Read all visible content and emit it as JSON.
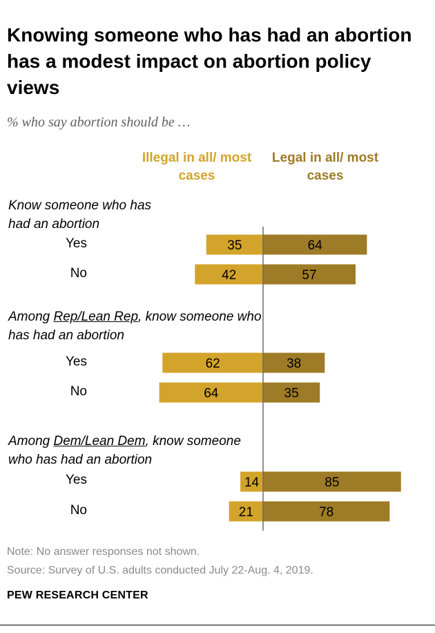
{
  "title": "Knowing someone who has had an abortion has a modest impact on abortion policy views",
  "subtitle": "% who say abortion should be …",
  "columns": {
    "illegal": "Illegal in all/ most cases",
    "legal": "Legal in all/ most cases"
  },
  "groups": [
    {
      "label_pre": "Know someone who has had an abortion",
      "label_underline": "",
      "label_post": ""
    },
    {
      "label_pre": "Among ",
      "label_underline": "Rep/Lean Rep",
      "label_post": ", know someone who has had an abortion"
    },
    {
      "label_pre": "Among ",
      "label_underline": "Dem/Lean Dem",
      "label_post": ", know someone who has had an abortion"
    }
  ],
  "note": "Note: No answer responses not shown.",
  "source": "Source: Survey of U.S. adults conducted July 22-Aug. 4, 2019.",
  "brand": "PEW RESEARCH CENTER",
  "colors": {
    "illegal": "#d3a42b",
    "legal": "#9e7b26",
    "axis": "#6b6b6b"
  },
  "chart_data": {
    "type": "bar",
    "orientation": "horizontal-diverging",
    "title": "Knowing someone who has had an abortion has a modest impact on abortion policy views",
    "subtitle": "% who say abortion should be …",
    "series": [
      {
        "name": "Illegal in all/ most cases",
        "values": [
          35,
          42,
          62,
          64,
          14,
          21
        ]
      },
      {
        "name": "Legal in all/ most cases",
        "values": [
          64,
          57,
          38,
          35,
          85,
          78
        ]
      }
    ],
    "categories": [
      "Yes",
      "No",
      "Yes",
      "No",
      "Yes",
      "No"
    ],
    "category_groups": [
      "Know someone who has had an abortion",
      "Know someone who has had an abortion",
      "Among Rep/Lean Rep, know someone who has had an abortion",
      "Among Rep/Lean Rep, know someone who has had an abortion",
      "Among Dem/Lean Dem, know someone who has had an abortion",
      "Among Dem/Lean Dem, know someone who has had an abortion"
    ],
    "xlim": [
      -100,
      100
    ],
    "grid": false
  }
}
